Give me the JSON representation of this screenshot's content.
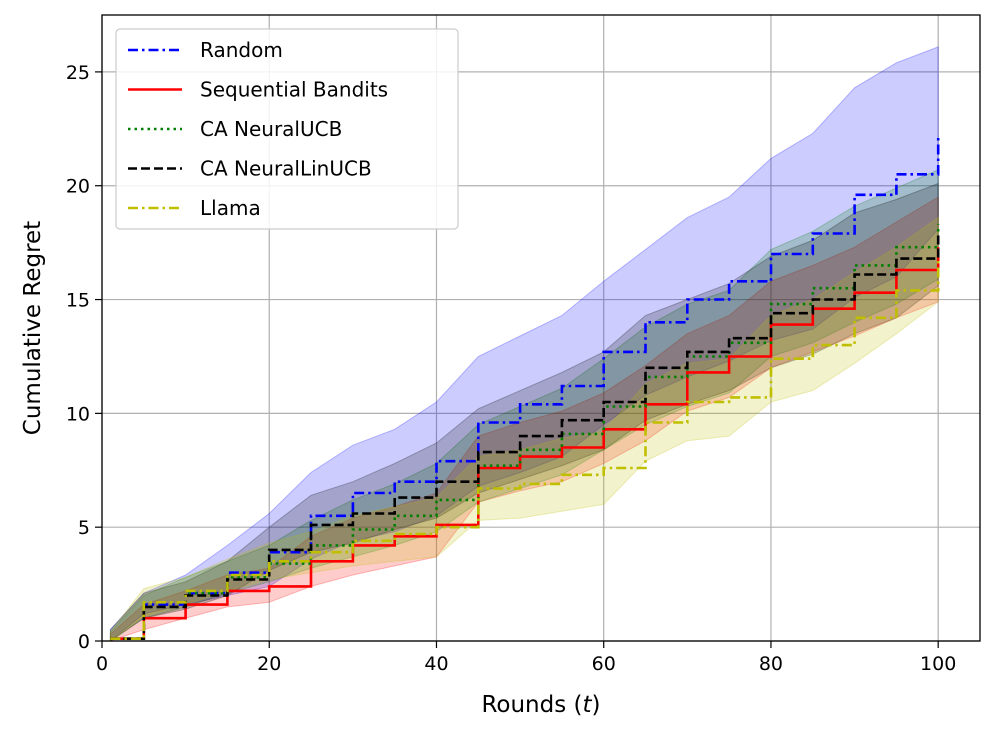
{
  "chart_data": {
    "type": "line",
    "title": "",
    "xlabel": "Rounds",
    "xlabel_var": "t",
    "ylabel": "Cumulative Regret",
    "xlim": [
      0,
      105
    ],
    "ylim": [
      0,
      27.5
    ],
    "xticks": [
      0,
      20,
      40,
      60,
      80,
      100
    ],
    "yticks": [
      0,
      5,
      10,
      15,
      20,
      25
    ],
    "grid": true,
    "legend_position": "top-left",
    "x": [
      1,
      5,
      10,
      15,
      20,
      25,
      30,
      35,
      40,
      45,
      50,
      55,
      60,
      65,
      70,
      75,
      80,
      85,
      90,
      95,
      100
    ],
    "series": [
      {
        "name": "Random",
        "color": "#0000ff",
        "dash": "dashdot",
        "values": [
          0.1,
          1.6,
          2.1,
          3.0,
          3.9,
          5.5,
          6.5,
          7.0,
          7.9,
          9.6,
          10.4,
          11.2,
          12.7,
          14.0,
          15.0,
          15.8,
          17.0,
          17.9,
          19.6,
          20.5,
          22.1
        ],
        "upper": [
          0.5,
          2.1,
          2.9,
          4.2,
          5.6,
          7.4,
          8.6,
          9.3,
          10.5,
          12.5,
          13.4,
          14.3,
          15.8,
          17.2,
          18.6,
          19.5,
          21.2,
          22.3,
          24.3,
          25.4,
          26.1
        ],
        "lower": [
          0.0,
          1.2,
          1.6,
          2.0,
          2.4,
          3.6,
          4.4,
          4.8,
          5.5,
          6.8,
          7.4,
          8.1,
          9.5,
          10.8,
          11.6,
          12.3,
          13.2,
          13.7,
          15.1,
          16.0,
          18.1
        ]
      },
      {
        "name": "Sequential Bandits",
        "color": "#ff0000",
        "dash": "solid",
        "values": [
          0.1,
          1.0,
          1.6,
          2.2,
          2.4,
          3.5,
          4.2,
          4.6,
          5.1,
          7.6,
          8.1,
          8.5,
          9.3,
          10.4,
          11.8,
          12.5,
          13.9,
          14.6,
          15.3,
          16.3,
          17.3
        ],
        "upper": [
          0.3,
          1.6,
          2.2,
          2.9,
          3.2,
          4.6,
          5.4,
          5.9,
          6.5,
          9.0,
          9.6,
          10.1,
          10.9,
          12.1,
          13.5,
          14.3,
          15.8,
          16.5,
          17.3,
          18.4,
          19.5
        ],
        "lower": [
          0.0,
          0.5,
          1.0,
          1.5,
          1.7,
          2.4,
          2.9,
          3.3,
          3.7,
          6.1,
          6.6,
          7.0,
          7.8,
          8.8,
          10.1,
          10.7,
          12.0,
          12.7,
          13.4,
          14.2,
          14.9
        ]
      },
      {
        "name": "CA NeuralUCB",
        "color": "#008000",
        "dash": "dotted",
        "values": [
          0.1,
          1.5,
          2.1,
          2.8,
          3.4,
          4.2,
          4.9,
          5.5,
          6.2,
          7.7,
          8.4,
          9.1,
          10.3,
          11.6,
          12.5,
          13.1,
          14.8,
          15.5,
          16.5,
          17.3,
          18.3
        ],
        "upper": [
          0.4,
          2.0,
          2.8,
          3.5,
          4.2,
          5.3,
          6.2,
          6.9,
          7.8,
          9.5,
          10.3,
          11.1,
          12.4,
          13.8,
          14.8,
          15.4,
          17.2,
          18.0,
          19.1,
          19.9,
          20.7
        ],
        "lower": [
          0.0,
          1.0,
          1.5,
          2.1,
          2.6,
          3.2,
          3.7,
          4.2,
          4.8,
          6.1,
          6.7,
          7.3,
          8.4,
          9.5,
          10.3,
          10.9,
          12.5,
          13.1,
          14.0,
          14.8,
          15.9
        ]
      },
      {
        "name": "CA NeuralLinUCB",
        "color": "#000000",
        "dash": "dashed",
        "values": [
          0.1,
          1.5,
          2.0,
          2.7,
          4.0,
          5.1,
          5.6,
          6.3,
          7.0,
          8.3,
          9.0,
          9.7,
          10.5,
          12.0,
          12.7,
          13.3,
          14.4,
          15.0,
          16.1,
          16.8,
          17.9
        ],
        "upper": [
          0.5,
          2.1,
          2.6,
          3.5,
          5.0,
          6.4,
          7.0,
          7.8,
          8.7,
          10.2,
          11.0,
          11.8,
          12.7,
          14.3,
          15.0,
          15.7,
          16.9,
          17.6,
          18.8,
          19.4,
          20.1
        ],
        "lower": [
          0.0,
          1.0,
          1.4,
          2.0,
          3.1,
          3.9,
          4.3,
          4.9,
          5.4,
          6.5,
          7.1,
          7.7,
          8.4,
          9.7,
          10.4,
          11.0,
          12.0,
          12.6,
          13.5,
          14.2,
          15.6
        ]
      },
      {
        "name": "Llama",
        "color": "#bfbf00",
        "dash": "dashdot",
        "values": [
          0.1,
          1.7,
          2.2,
          2.9,
          3.5,
          3.9,
          4.4,
          4.7,
          5.0,
          6.7,
          6.9,
          7.3,
          7.6,
          9.6,
          10.5,
          10.7,
          12.4,
          13.0,
          14.2,
          15.4,
          16.8
        ],
        "upper": [
          0.4,
          2.3,
          2.8,
          3.6,
          4.3,
          4.8,
          5.5,
          5.9,
          6.3,
          8.1,
          8.4,
          8.9,
          9.2,
          11.3,
          12.2,
          12.4,
          14.3,
          15.0,
          16.2,
          17.3,
          18.6
        ],
        "lower": [
          0.0,
          1.1,
          1.6,
          2.2,
          2.7,
          3.0,
          3.3,
          3.5,
          3.7,
          5.3,
          5.4,
          5.7,
          6.0,
          7.9,
          8.8,
          9.0,
          10.5,
          11.0,
          12.2,
          13.5,
          14.9
        ]
      }
    ]
  }
}
